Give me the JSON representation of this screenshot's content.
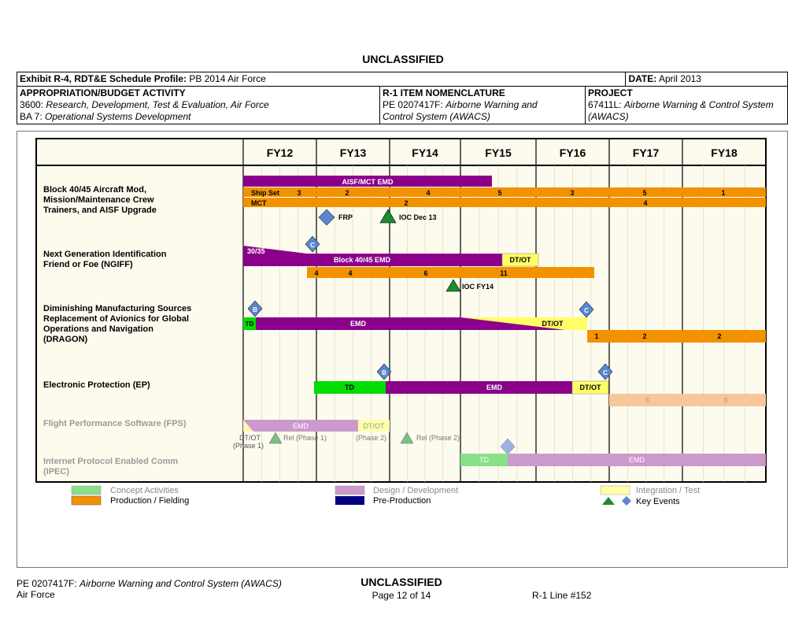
{
  "classification": "UNCLASSIFIED",
  "header": {
    "exhibit_label": "Exhibit R-4, RDT&E Schedule Profile:",
    "exhibit_value": "PB 2014 Air Force",
    "date_label": "DATE:",
    "date_value": "April 2013",
    "approp_label": "APPROPRIATION/BUDGET ACTIVITY",
    "approp_line1_code": "3600:",
    "approp_line1_text": "Research, Development, Test & Evaluation, Air Force",
    "approp_line2_code": "BA 7:",
    "approp_line2_text": "Operational Systems Development",
    "r1_label": "R-1 ITEM NOMENCLATURE",
    "r1_code": "PE 0207417F:",
    "r1_text1": "Airborne Warning and",
    "r1_text2": "Control System (AWACS)",
    "project_label": "PROJECT",
    "project_code": "67411L:",
    "project_text1": "Airborne Warning & Control System",
    "project_text2": "(AWACS)"
  },
  "schedule": {
    "years": [
      "FY12",
      "FY13",
      "FY14",
      "FY15",
      "FY16",
      "FY17",
      "FY18"
    ],
    "rows": [
      {
        "label_lines": [
          "Block 40/45 Aircraft Mod,",
          "Mission/Maintenance Crew",
          "Trainers, and AISF Upgrade"
        ],
        "faded": false
      },
      {
        "label_lines": [
          "Next Generation Identification",
          "Friend or Foe (NGIFF)"
        ],
        "faded": false
      },
      {
        "label_lines": [
          "Diminishing Manufacturing Sources",
          "Replacement of Avionics for Global",
          "Operations and Navigation",
          "(DRAGON)"
        ],
        "faded": false
      },
      {
        "label_lines": [
          "Electronic Protection (EP)"
        ],
        "faded": false
      },
      {
        "label_lines": [
          "Flight Performance Software (FPS)"
        ],
        "faded": true
      },
      {
        "label_lines": [
          "Internet Protocol Enabled Comm",
          "(IPEC)"
        ],
        "faded": true
      }
    ],
    "bar_labels": {
      "aisf": "AISF/MCT EMD",
      "shipset": "Ship Set",
      "ship_nums": [
        "3",
        "2",
        "4",
        "5",
        "3",
        "5",
        "1"
      ],
      "mct": "MCT",
      "mct_nums": [
        "2",
        "4"
      ],
      "ngiff_3035": "30/35",
      "ngiff_emd": "Block 40/45 EMD",
      "ngiff_dtot": "DT/OT",
      "ngiff_prod_nums": [
        "4",
        "4",
        "6",
        "11"
      ],
      "dragon_td": "TD",
      "dragon_emd": "EMD",
      "dragon_dtot": "DT/OT",
      "dragon_prod_nums": [
        "1",
        "2",
        "2"
      ],
      "ep_td": "TD",
      "ep_emd": "EMD",
      "ep_dtot": "DT/OT",
      "ep_prod_nums": [
        "8",
        "8"
      ],
      "fps_emd": "EMD",
      "fps_dtot": "DT/OT",
      "ipec_td": "TD",
      "ipec_emd": "EMD"
    },
    "events": {
      "frp": "FRP",
      "ioc_dec13": "IOC Dec 13",
      "ioc_fy14": "IOC FY14",
      "c": "C",
      "b": "B",
      "fps_dtot1": "DT/OT",
      "fps_phase1": "(Phase 1)",
      "fps_rel1": "Rel (Phase 1)",
      "fps_phase2": "(Phase 2)",
      "fps_rel2": "Rel (Phase 2)"
    }
  },
  "legend": {
    "concept": "Concept Activities",
    "design": "Design / Development",
    "integration": "Integration / Test",
    "production": "Production  / Fielding",
    "preproduction": "Pre-Production",
    "key_events": "Key Events"
  },
  "colors": {
    "purple": "#8b008b",
    "orange": "#f39200",
    "green": "#00dd00",
    "yellow": "#ffff66",
    "lavender": "#cc99cc",
    "navy": "#000080",
    "diamond": "#5a86cf",
    "triangle": "#1e8a32",
    "panel_bg": "#fdfbee",
    "light_green": "#88e088",
    "light_yellow": "#ffffaa",
    "light_orange": "#f7c79a"
  },
  "footer": {
    "pe_code": "PE 0207417F:",
    "pe_text": "Airborne Warning and Control System (AWACS)",
    "service": "Air Force",
    "classification": "UNCLASSIFIED",
    "page": "Page 12 of 14",
    "r1_line": "R-1 Line #152"
  }
}
